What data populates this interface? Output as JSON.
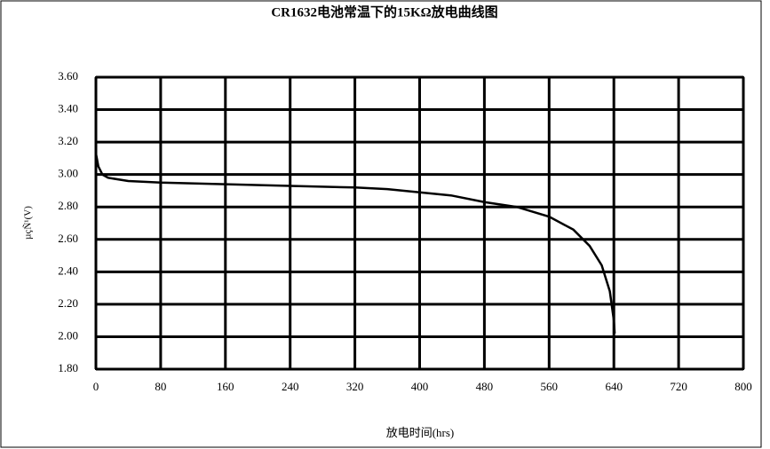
{
  "chart_data": {
    "type": "line",
    "title": "CR1632电池常温下的15KΩ放电曲线图",
    "x_label": "放电时间(hrs)",
    "y_label": "µçÑ¹(V)",
    "x": [
      0,
      3,
      8,
      15,
      40,
      80,
      160,
      240,
      320,
      360,
      400,
      440,
      480,
      520,
      560,
      590,
      610,
      625,
      635,
      640,
      641
    ],
    "values": [
      3.13,
      3.05,
      3.0,
      2.98,
      2.96,
      2.95,
      2.94,
      2.93,
      2.92,
      2.91,
      2.89,
      2.87,
      2.83,
      2.8,
      2.74,
      2.66,
      2.56,
      2.44,
      2.28,
      2.1,
      2.02
    ],
    "color": "#000000",
    "xlim": [
      0,
      800
    ],
    "xticks": [
      0,
      80,
      160,
      240,
      320,
      400,
      480,
      560,
      640,
      720,
      800
    ],
    "ylim": [
      1.8,
      3.6
    ],
    "yticks": [
      {
        "value": 1.8,
        "label": "1.80"
      },
      {
        "value": 2.0,
        "label": "2.00"
      },
      {
        "value": 2.2,
        "label": "2.20"
      },
      {
        "value": 2.4,
        "label": "2.40"
      },
      {
        "value": 2.6,
        "label": "2.60"
      },
      {
        "value": 2.8,
        "label": "2.80"
      },
      {
        "value": 3.0,
        "label": "3.00"
      },
      {
        "value": 3.2,
        "label": "3.20"
      },
      {
        "value": 3.4,
        "label": "3.40"
      },
      {
        "value": 3.6,
        "label": "3.60"
      }
    ],
    "grid": true
  }
}
